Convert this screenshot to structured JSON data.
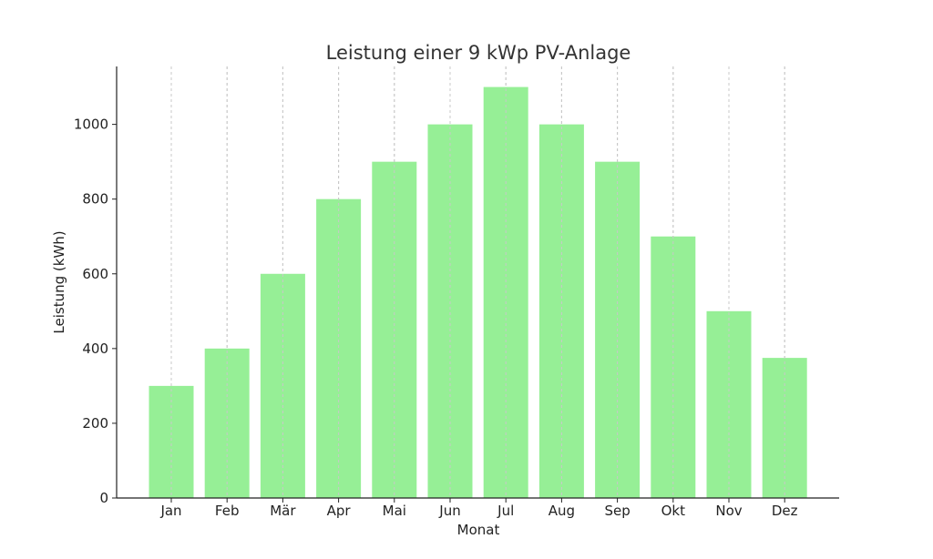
{
  "chart_data": {
    "type": "bar",
    "title": "Leistung einer 9 kWp PV-Anlage",
    "xlabel": "Monat",
    "ylabel": "Leistung (kWh)",
    "categories": [
      "Jan",
      "Feb",
      "Mär",
      "Apr",
      "Mai",
      "Jun",
      "Jul",
      "Aug",
      "Sep",
      "Okt",
      "Nov",
      "Dez"
    ],
    "values": [
      300,
      400,
      600,
      800,
      900,
      1000,
      1100,
      1000,
      900,
      700,
      500,
      375
    ],
    "ylim": [
      0,
      1155
    ],
    "yticks": [
      0,
      200,
      400,
      600,
      800,
      1000
    ],
    "grid": "vertical dashed",
    "bar_color": "#90ee90"
  }
}
